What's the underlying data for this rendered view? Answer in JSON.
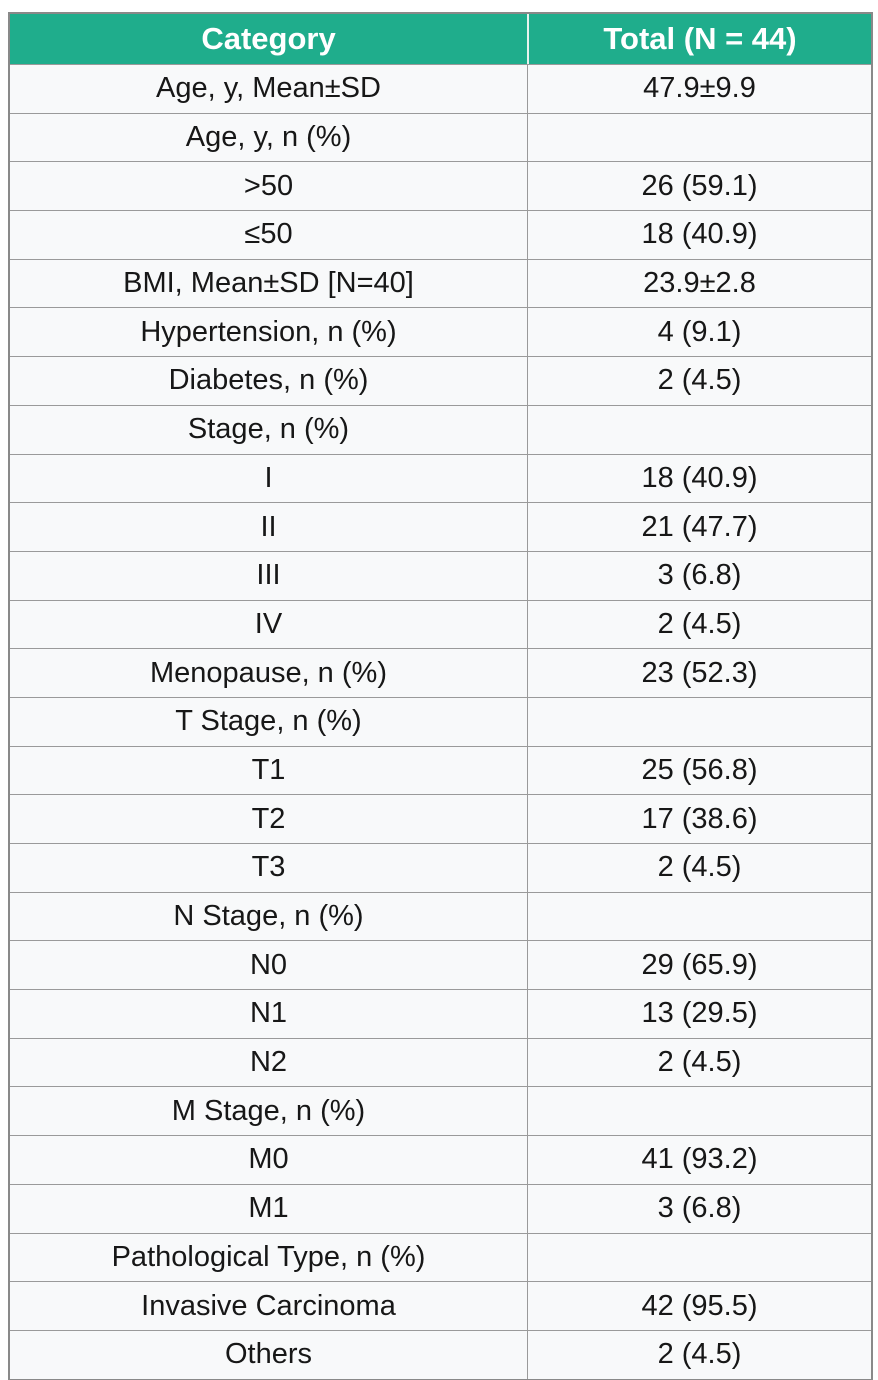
{
  "table": {
    "columns": [
      "Category",
      "Total (N = 44)"
    ],
    "rows": [
      {
        "category": "Age, y, Mean±SD",
        "total": "47.9±9.9"
      },
      {
        "category": "Age, y, n (%)",
        "total": ""
      },
      {
        "category": ">50",
        "total": "26 (59.1)"
      },
      {
        "category": "≤50",
        "total": "18 (40.9)"
      },
      {
        "category": "BMI, Mean±SD [N=40]",
        "total": "23.9±2.8"
      },
      {
        "category": "Hypertension, n (%)",
        "total": "4 (9.1)"
      },
      {
        "category": "Diabetes, n (%)",
        "total": "2 (4.5)"
      },
      {
        "category": "Stage, n (%)",
        "total": ""
      },
      {
        "category": "I",
        "total": "18 (40.9)"
      },
      {
        "category": "II",
        "total": "21 (47.7)"
      },
      {
        "category": "III",
        "total": "3 (6.8)"
      },
      {
        "category": "IV",
        "total": "2 (4.5)"
      },
      {
        "category": "Menopause, n (%)",
        "total": "23 (52.3)"
      },
      {
        "category": "T Stage, n (%)",
        "total": ""
      },
      {
        "category": "T1",
        "total": "25 (56.8)"
      },
      {
        "category": "T2",
        "total": "17 (38.6)"
      },
      {
        "category": "T3",
        "total": "2 (4.5)"
      },
      {
        "category": "N Stage, n (%)",
        "total": ""
      },
      {
        "category": "N0",
        "total": "29 (65.9)"
      },
      {
        "category": "N1",
        "total": "13 (29.5)"
      },
      {
        "category": "N2",
        "total": "2 (4.5)"
      },
      {
        "category": "M Stage, n (%)",
        "total": ""
      },
      {
        "category": "M0",
        "total": "41 (93.2)"
      },
      {
        "category": "M1",
        "total": "3 (6.8)"
      },
      {
        "category": "Pathological Type, n (%)",
        "total": ""
      },
      {
        "category": "Invasive Carcinoma",
        "total": "42 (95.5)"
      },
      {
        "category": "Others",
        "total": "2 (4.5)"
      }
    ]
  },
  "colors": {
    "header_bg": "#1fad8c",
    "header_text": "#ffffff",
    "row_bg": "#f8f9fa",
    "border": "#9a9a9a",
    "outer_border": "#898989",
    "body_text": "#171717"
  }
}
